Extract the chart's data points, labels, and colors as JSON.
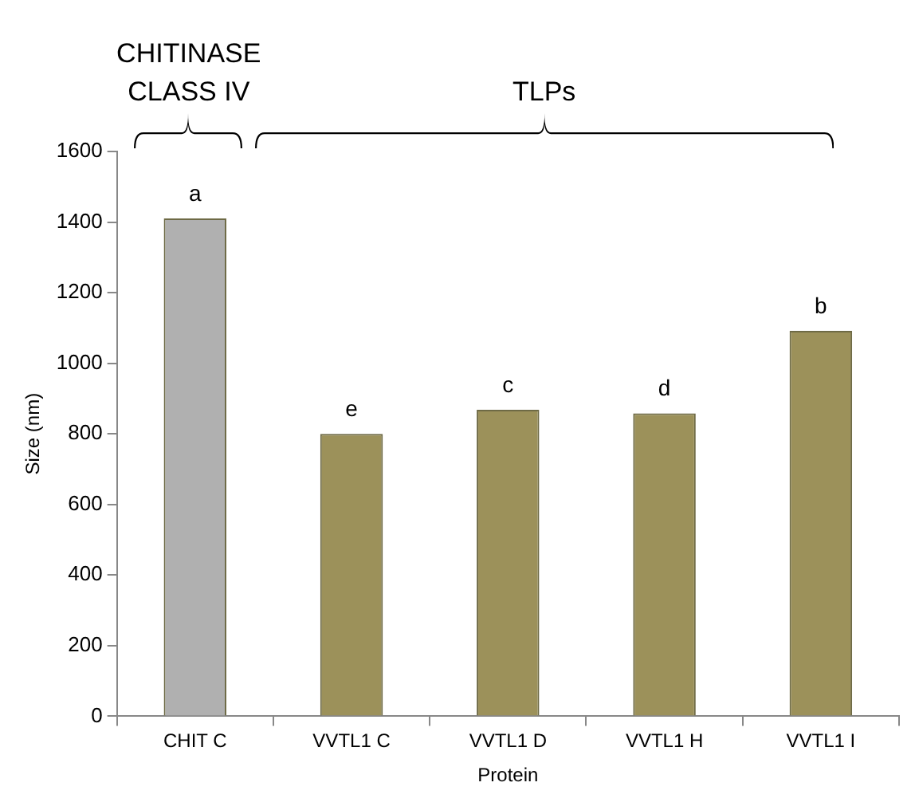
{
  "chart_data": {
    "type": "bar",
    "xlabel": "Protein",
    "ylabel": "Size (nm)",
    "categories": [
      "CHIT C",
      "VVTL1 C",
      "VVTL1 D",
      "VVTL1 H",
      "VVTL1 I"
    ],
    "values": [
      1410,
      800,
      868,
      858,
      1092
    ],
    "colors": [
      "#b0b0b0",
      "#9c915a",
      "#9c915a",
      "#9c915a",
      "#9c915a"
    ],
    "value_labels": [
      "a",
      "e",
      "c",
      "d",
      "b"
    ],
    "ylim": [
      0,
      1600
    ],
    "yticks": [
      0,
      200,
      400,
      600,
      800,
      1000,
      1200,
      1400,
      1600
    ],
    "grid": false,
    "annotations": [
      "CHITINASE\nCLASS IV",
      "TLPs"
    ]
  }
}
